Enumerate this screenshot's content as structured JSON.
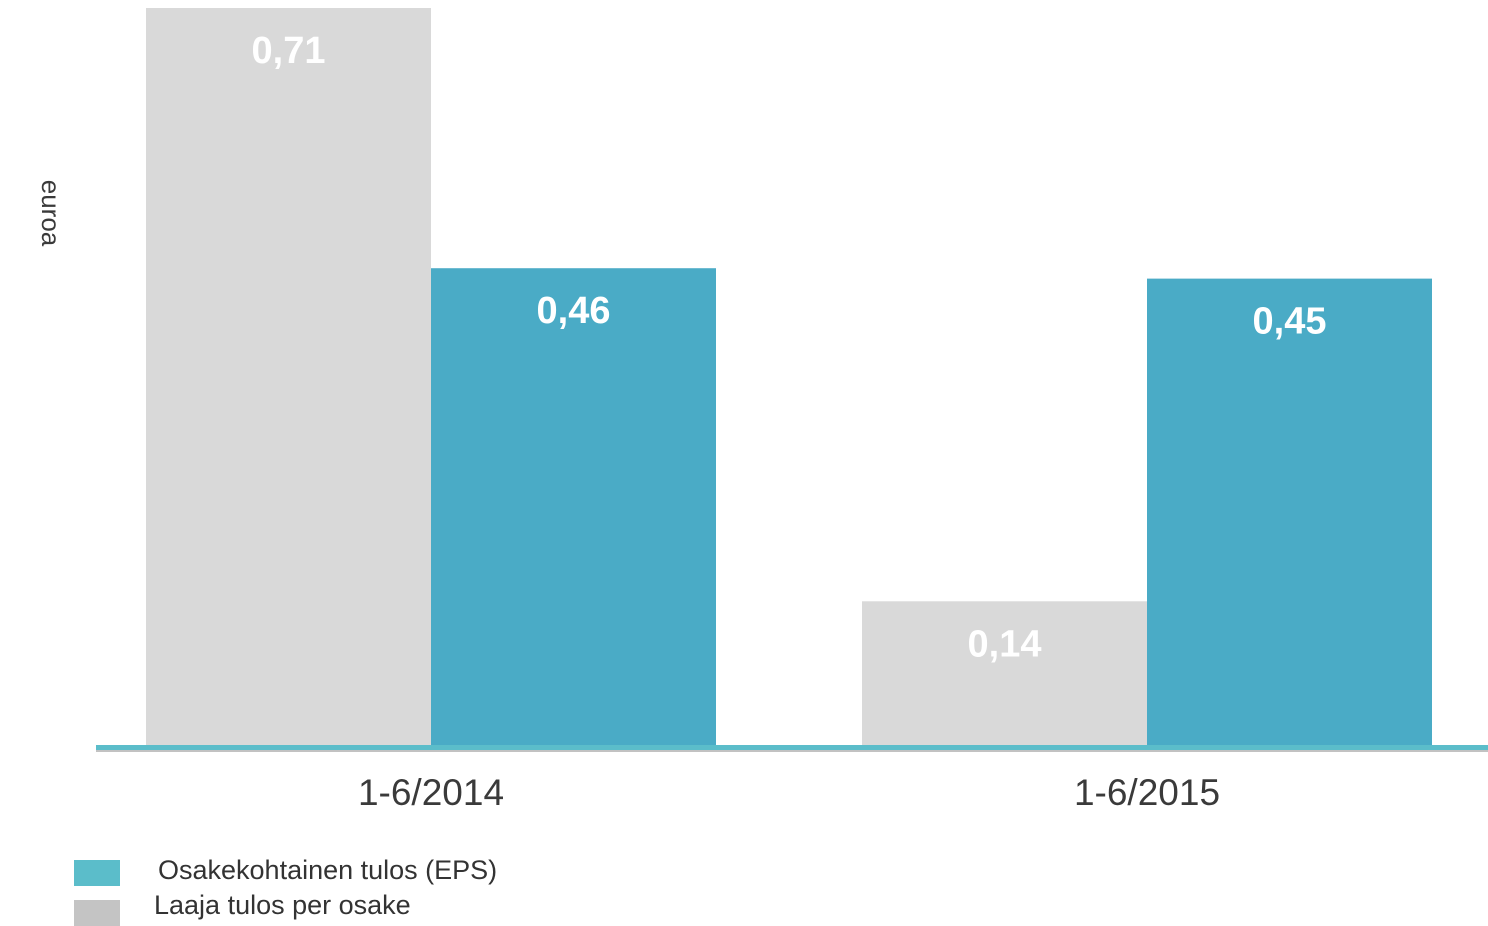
{
  "chart_data": {
    "type": "bar",
    "categories": [
      "1-6/2014",
      "1-6/2015"
    ],
    "series": [
      {
        "name": "Laaja tulos per osake",
        "values": [
          0.71,
          0.14
        ],
        "value_labels": [
          "0,71",
          "0,14"
        ],
        "color": "#d9d9d9"
      },
      {
        "name": "Osakekohtainen tulos (EPS)",
        "values": [
          0.46,
          0.45
        ],
        "value_labels": [
          "0,46",
          "0,45"
        ],
        "color": "#4aabc6"
      }
    ],
    "ylabel": "euroa",
    "ylim": [
      0,
      0.71
    ],
    "grid": false,
    "legend_position": "bottom-left",
    "axis_color": "#5bbdca"
  },
  "legend": {
    "items": [
      {
        "label": "Osakekohtainen tulos (EPS)",
        "color": "#5bbdca"
      },
      {
        "label": "Laaja tulos per osake",
        "color": "#c4c4c4"
      }
    ]
  }
}
